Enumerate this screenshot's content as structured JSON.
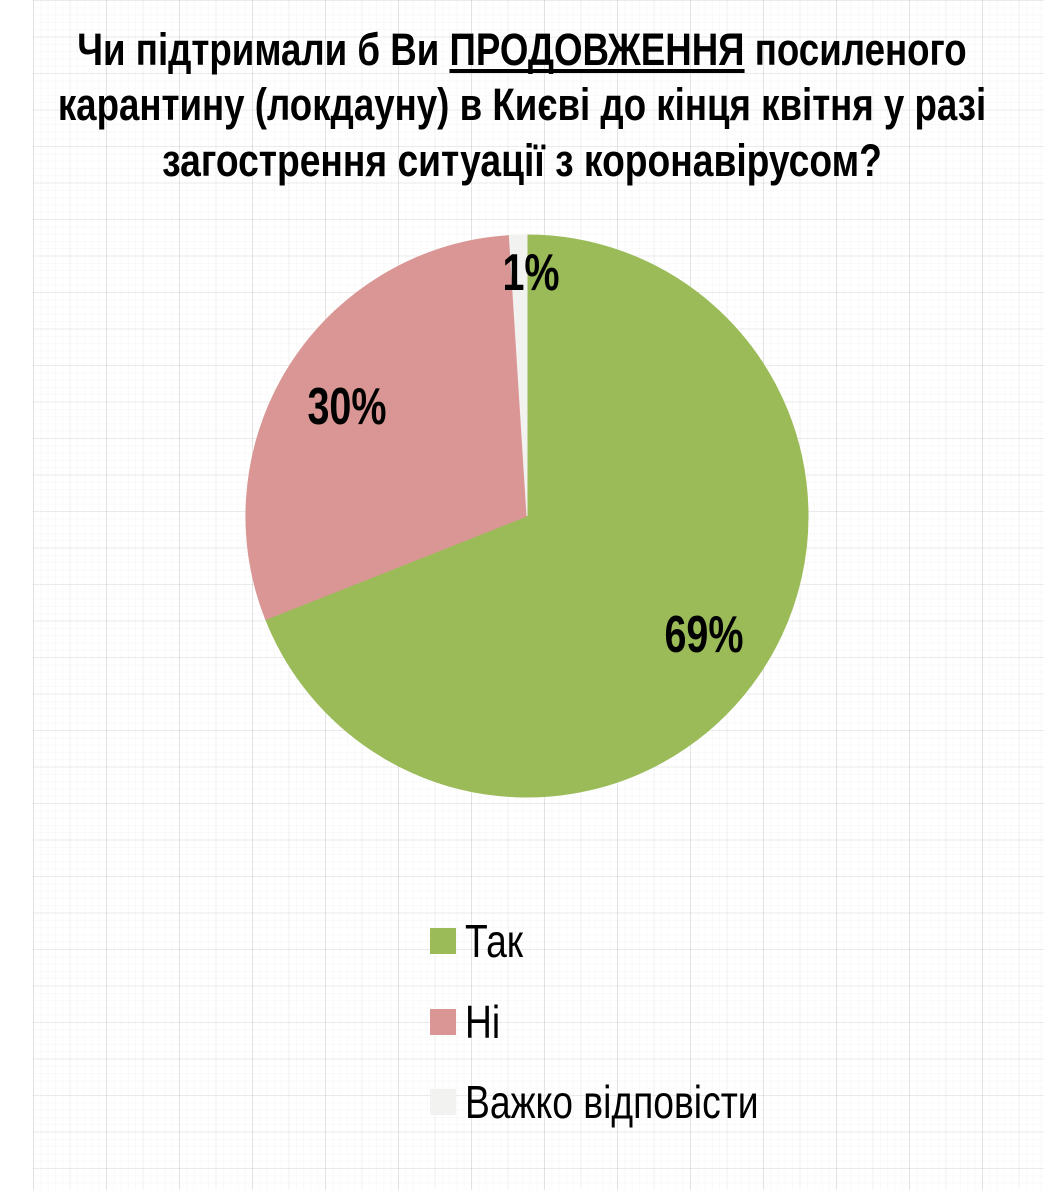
{
  "title": {
    "line1_pre": "Чи підтримали б Ви ",
    "line1_underline": "ПРОДОВЖЕННЯ",
    "line1_post": " посиленого",
    "line2": "карантину (локдауну) в Києві до кінця квітня у разі",
    "line3": "загострення ситуації з коронавірусом?"
  },
  "chart_data": {
    "type": "pie",
    "labels": [
      "Так",
      "Ні",
      "Важко відповісти"
    ],
    "values": [
      69,
      30,
      1
    ],
    "data_labels": [
      "69%",
      "30%",
      "1%"
    ],
    "colors": [
      "#9bbb59",
      "#d99694",
      "#f2f2f0"
    ],
    "start_angle_deg": 0,
    "direction": "clockwise",
    "legend_position": "bottom"
  },
  "legend": {
    "items": [
      {
        "label": "Так",
        "color": "#9bbb59"
      },
      {
        "label": "Ні",
        "color": "#d99694"
      },
      {
        "label": "Важко відповісти",
        "color": "#f2f2f0"
      }
    ]
  }
}
